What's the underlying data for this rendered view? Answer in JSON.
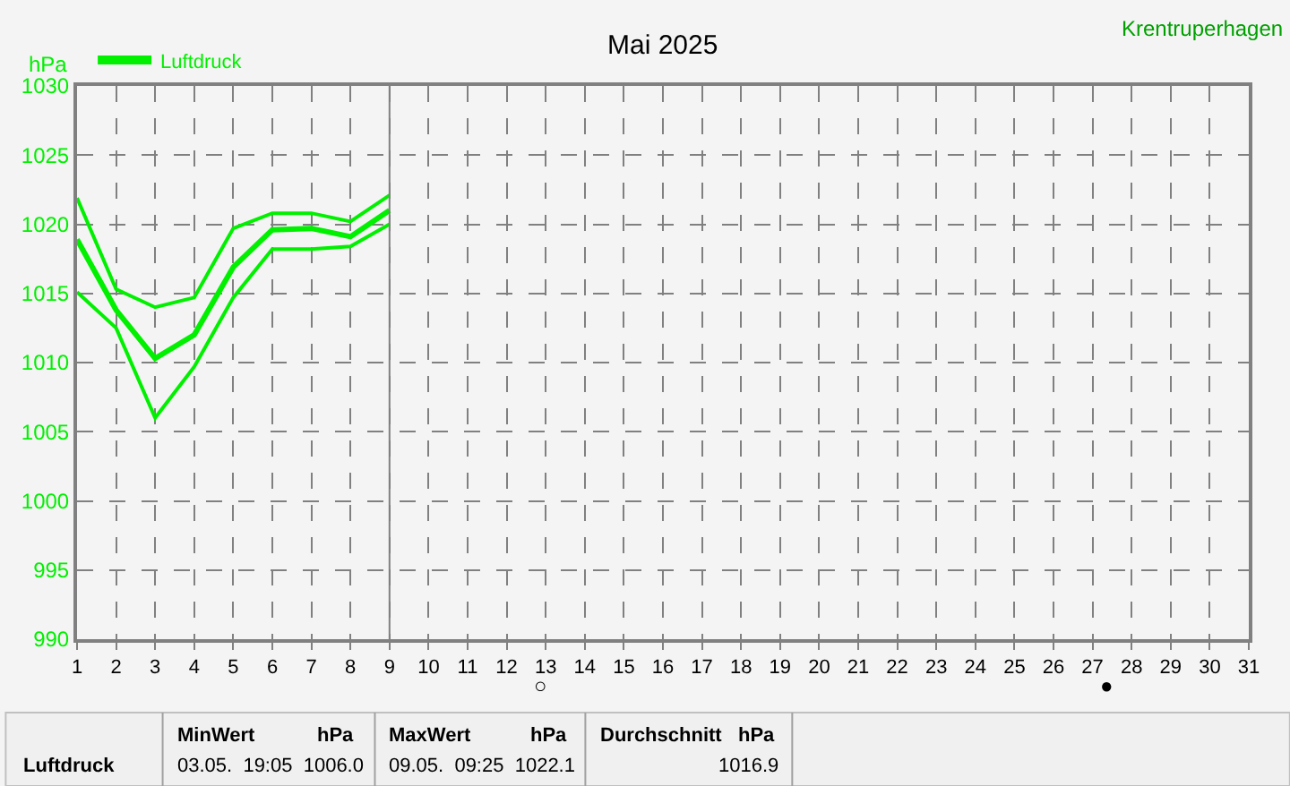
{
  "chart_data": {
    "type": "line",
    "title": "Mai 2025",
    "ylabel": "hPa",
    "x": [
      1,
      2,
      3,
      4,
      5,
      6,
      7,
      8,
      9
    ],
    "series": [
      {
        "name": "Luftdruck",
        "color": "#00f000",
        "values": [
          1021.9,
          1015.3,
          1014.0,
          1014.7,
          1019.7,
          1020.8,
          1020.8,
          1020.2,
          1022.1
        ]
      },
      {
        "color": "#00f000",
        "values": [
          1018.9,
          1013.8,
          1010.3,
          1012.0,
          1016.9,
          1019.6,
          1019.7,
          1019.1,
          1021.0
        ]
      },
      {
        "color": "#00f000",
        "values": [
          1015.1,
          1012.5,
          1006.0,
          1009.7,
          1014.7,
          1018.2,
          1018.2,
          1018.4,
          1020.0
        ]
      }
    ],
    "xlim": [
      1,
      31
    ],
    "xticks": [
      1,
      2,
      3,
      4,
      5,
      6,
      7,
      8,
      9,
      10,
      11,
      12,
      13,
      14,
      15,
      16,
      17,
      18,
      19,
      20,
      21,
      22,
      23,
      24,
      25,
      26,
      27,
      28,
      29,
      30,
      31
    ],
    "ylim": [
      990,
      1030
    ],
    "yticks": [
      990,
      995,
      1000,
      1005,
      1010,
      1015,
      1020,
      1025,
      1030
    ],
    "grid": true,
    "legend": "top left",
    "marker": "none",
    "line_style": "solid",
    "ref_lines": [
      {
        "axis": "x",
        "value": 9,
        "color": "#808080"
      }
    ],
    "annotations": [
      "○",
      "●",
      "Krentruperhagen",
      "Luftdruck",
      "MinWert",
      "hPa",
      "03.05.  19:05  1006.0",
      "MaxWert",
      "hPa",
      "09.05.  09:25  1022.1",
      "Durchschnitt   hPa",
      "1016.9"
    ]
  }
}
